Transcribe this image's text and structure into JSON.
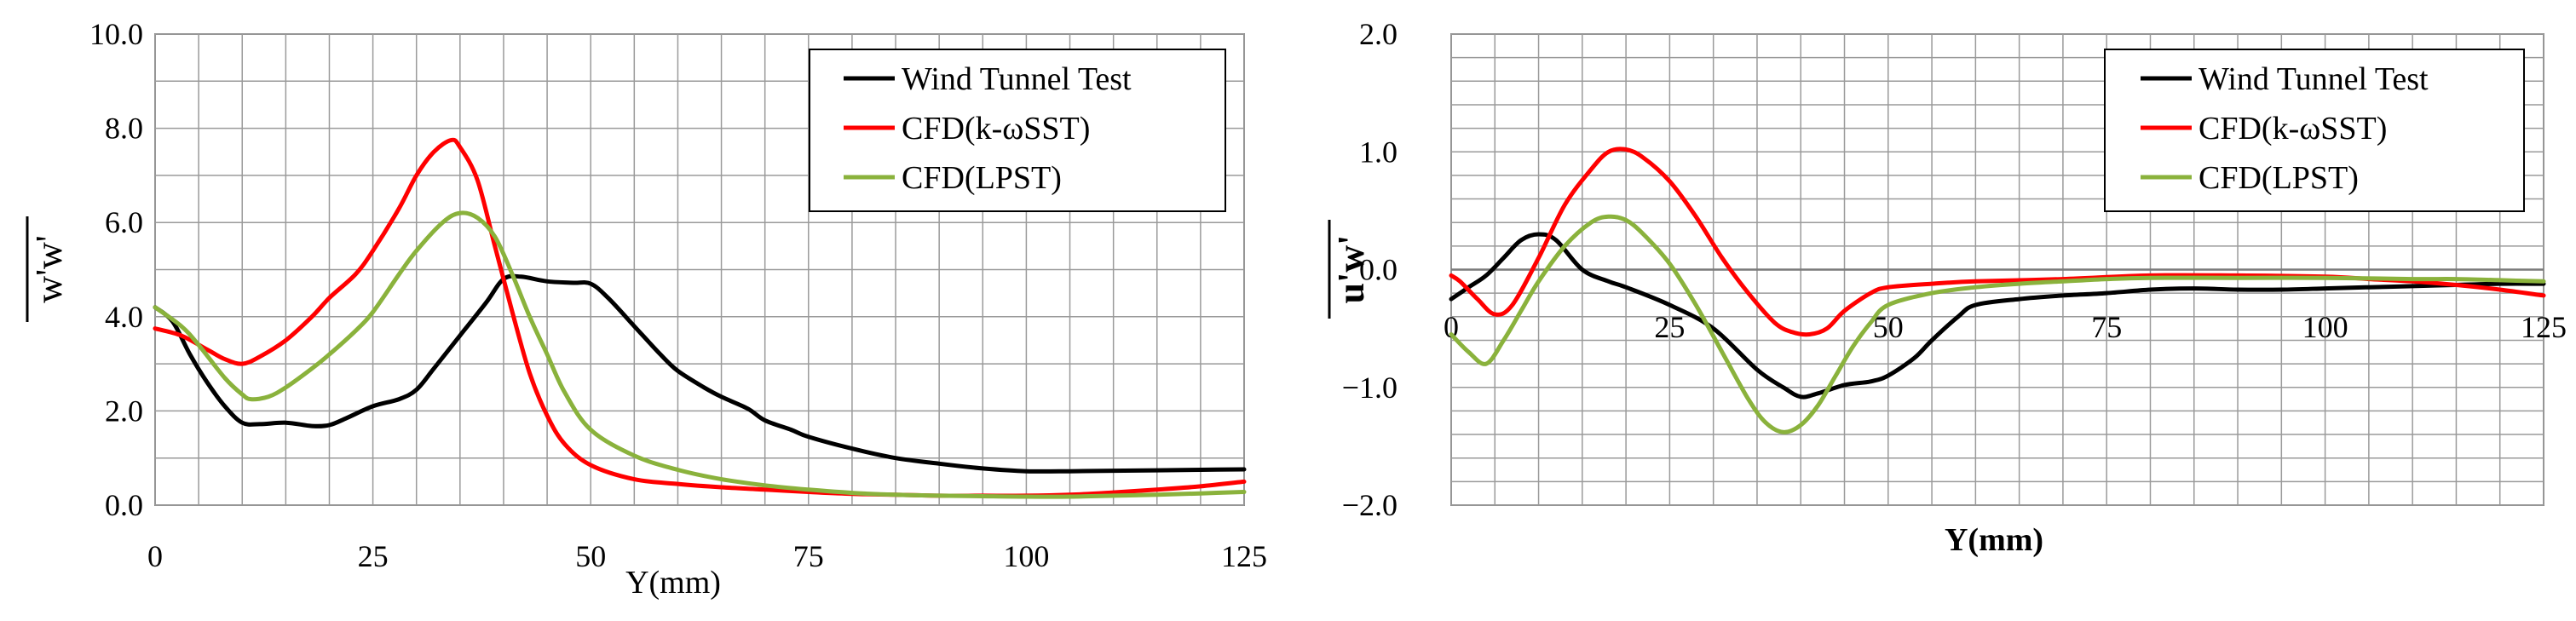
{
  "chart_data": [
    {
      "type": "line",
      "ylabel": "w'w'",
      "xlabel": "Y(mm)",
      "xlim": [
        0,
        125
      ],
      "ylim": [
        0,
        10
      ],
      "x_ticks": [
        0,
        25,
        50,
        75,
        100,
        125
      ],
      "x_tick_labels": [
        "0",
        "25",
        "50",
        "75",
        "100",
        "125"
      ],
      "y_ticks": [
        0,
        2,
        4,
        6,
        8,
        10
      ],
      "y_tick_labels": [
        "0.0",
        "2.0",
        "4.0",
        "6.0",
        "8.0",
        "10.0"
      ],
      "grid": true,
      "legend_position": "top-right",
      "series": [
        {
          "name": "Wind Tunnel Test",
          "color": "#000000",
          "x": [
            0,
            2,
            4,
            6,
            8,
            10,
            12,
            15,
            18,
            20,
            22,
            25,
            28,
            30,
            32,
            35,
            38,
            40,
            42,
            45,
            48,
            50,
            52,
            55,
            58,
            60,
            63,
            65,
            68,
            70,
            73,
            75,
            80,
            85,
            90,
            95,
            100,
            105,
            110,
            115,
            120,
            125
          ],
          "y": [
            4.2,
            3.9,
            3.2,
            2.6,
            2.1,
            1.75,
            1.72,
            1.75,
            1.68,
            1.7,
            1.85,
            2.1,
            2.25,
            2.45,
            2.9,
            3.6,
            4.3,
            4.8,
            4.85,
            4.75,
            4.72,
            4.7,
            4.4,
            3.8,
            3.2,
            2.85,
            2.5,
            2.3,
            2.05,
            1.8,
            1.6,
            1.45,
            1.2,
            1.0,
            0.88,
            0.78,
            0.72,
            0.72,
            0.73,
            0.74,
            0.75,
            0.76
          ]
        },
        {
          "name": "CFD(k-ωSST)",
          "color": "#ff0000",
          "x": [
            0,
            3,
            6,
            8,
            10,
            12,
            15,
            18,
            20,
            23,
            25,
            28,
            30,
            32,
            34,
            35,
            37,
            39,
            41,
            43,
            45,
            47,
            50,
            55,
            60,
            65,
            70,
            75,
            80,
            85,
            90,
            95,
            100,
            105,
            110,
            115,
            120,
            125
          ],
          "y": [
            3.75,
            3.6,
            3.3,
            3.1,
            3.0,
            3.15,
            3.5,
            4.0,
            4.4,
            4.9,
            5.4,
            6.3,
            7.0,
            7.5,
            7.75,
            7.6,
            6.9,
            5.5,
            4.1,
            2.8,
            1.9,
            1.3,
            0.85,
            0.55,
            0.45,
            0.38,
            0.33,
            0.28,
            0.24,
            0.22,
            0.2,
            0.2,
            0.2,
            0.22,
            0.27,
            0.33,
            0.4,
            0.5
          ]
        },
        {
          "name": "CFD(LPST)",
          "color": "#8ab23c",
          "x": [
            0,
            3,
            5,
            8,
            10,
            11,
            13,
            15,
            18,
            20,
            23,
            25,
            28,
            30,
            33,
            35,
            37,
            39,
            41,
            43,
            45,
            47,
            50,
            55,
            60,
            65,
            70,
            75,
            80,
            85,
            90,
            95,
            100,
            105,
            110,
            115,
            120,
            125
          ],
          "y": [
            4.2,
            3.8,
            3.4,
            2.7,
            2.35,
            2.25,
            2.3,
            2.5,
            2.9,
            3.2,
            3.7,
            4.1,
            4.9,
            5.4,
            6.0,
            6.2,
            6.1,
            5.7,
            4.9,
            4.0,
            3.2,
            2.4,
            1.6,
            1.05,
            0.75,
            0.55,
            0.42,
            0.33,
            0.26,
            0.22,
            0.2,
            0.19,
            0.18,
            0.18,
            0.2,
            0.22,
            0.25,
            0.28
          ]
        }
      ]
    },
    {
      "type": "line",
      "ylabel": "u'w'",
      "xlabel": "Y(mm)",
      "xlim": [
        0,
        125
      ],
      "ylim": [
        -2,
        2
      ],
      "x_ticks": [
        0,
        25,
        50,
        75,
        100,
        125
      ],
      "x_tick_labels": [
        "0",
        "25",
        "50",
        "75",
        "100",
        "125"
      ],
      "y_ticks": [
        -2,
        -1,
        0,
        1,
        2
      ],
      "y_tick_labels": [
        "−2.0",
        "−1.0",
        "0.0",
        "1.0",
        "2.0"
      ],
      "grid": true,
      "legend_position": "top-right",
      "series": [
        {
          "name": "Wind Tunnel Test",
          "color": "#000000",
          "x": [
            0,
            2,
            4,
            6,
            8,
            10,
            12,
            15,
            18,
            20,
            25,
            30,
            35,
            38,
            40,
            42,
            45,
            48,
            50,
            53,
            55,
            58,
            60,
            65,
            70,
            75,
            80,
            85,
            90,
            95,
            100,
            105,
            110,
            115,
            120,
            125
          ],
          "y": [
            -0.25,
            -0.15,
            -0.05,
            0.1,
            0.25,
            0.3,
            0.25,
            0.0,
            -0.1,
            -0.15,
            -0.3,
            -0.5,
            -0.85,
            -1.0,
            -1.08,
            -1.05,
            -0.98,
            -0.95,
            -0.9,
            -0.75,
            -0.6,
            -0.4,
            -0.3,
            -0.25,
            -0.22,
            -0.2,
            -0.17,
            -0.16,
            -0.17,
            -0.17,
            -0.16,
            -0.15,
            -0.14,
            -0.13,
            -0.12,
            -0.12
          ]
        },
        {
          "name": "CFD(k-ωSST)",
          "color": "#ff0000",
          "x": [
            0,
            1,
            3,
            5,
            7,
            10,
            13,
            16,
            18,
            20,
            22,
            25,
            28,
            31,
            34,
            37,
            39,
            41,
            43,
            45,
            48,
            50,
            55,
            60,
            70,
            80,
            90,
            100,
            105,
            110,
            115,
            120,
            125
          ],
          "y": [
            -0.05,
            -0.1,
            -0.25,
            -0.38,
            -0.3,
            0.1,
            0.55,
            0.85,
            1.0,
            1.02,
            0.95,
            0.75,
            0.45,
            0.1,
            -0.2,
            -0.45,
            -0.53,
            -0.55,
            -0.5,
            -0.35,
            -0.2,
            -0.15,
            -0.12,
            -0.1,
            -0.08,
            -0.05,
            -0.05,
            -0.06,
            -0.08,
            -0.1,
            -0.13,
            -0.17,
            -0.22
          ]
        },
        {
          "name": "CFD(LPST)",
          "color": "#8ab23c",
          "x": [
            0,
            2,
            4,
            6,
            8,
            10,
            13,
            16,
            18,
            20,
            22,
            25,
            28,
            31,
            34,
            36,
            38,
            40,
            42,
            44,
            46,
            48,
            50,
            55,
            60,
            65,
            70,
            75,
            80,
            90,
            100,
            110,
            115,
            120,
            125
          ],
          "y": [
            -0.55,
            -0.7,
            -0.8,
            -0.6,
            -0.35,
            -0.1,
            0.2,
            0.4,
            0.45,
            0.42,
            0.3,
            0.05,
            -0.3,
            -0.7,
            -1.1,
            -1.3,
            -1.38,
            -1.32,
            -1.15,
            -0.9,
            -0.65,
            -0.45,
            -0.3,
            -0.2,
            -0.15,
            -0.12,
            -0.1,
            -0.08,
            -0.07,
            -0.07,
            -0.07,
            -0.08,
            -0.08,
            -0.09,
            -0.1
          ]
        }
      ]
    }
  ]
}
